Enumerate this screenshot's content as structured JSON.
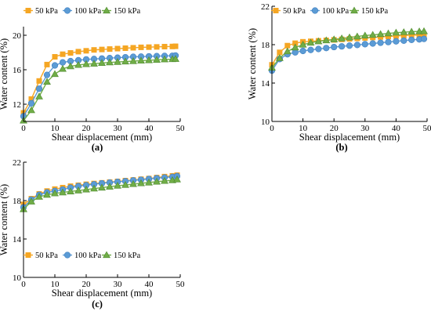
{
  "chart_data": [
    {
      "panel_label": "(a)",
      "type": "line",
      "xlabel": "Shear displacement (mm)",
      "ylabel": "Water content (%)",
      "xlim": [
        0,
        50
      ],
      "ylim": [
        10,
        21
      ],
      "xticks": [
        0,
        10,
        20,
        30,
        40,
        50
      ],
      "yticks": [
        12,
        16,
        20
      ],
      "legend_position": "top-left",
      "series": [
        {
          "name": "50 kPa",
          "color": "#F5A623",
          "marker": "square",
          "x": [
            0,
            2.5,
            5,
            7.5,
            10,
            12.5,
            15,
            17.5,
            20,
            22.5,
            25,
            27.5,
            30,
            32.5,
            35,
            37.5,
            40,
            42.5,
            45,
            47.5,
            48.5
          ],
          "y": [
            11.0,
            12.6,
            14.7,
            16.6,
            17.5,
            17.8,
            17.95,
            18.1,
            18.2,
            18.3,
            18.35,
            18.4,
            18.45,
            18.5,
            18.55,
            18.6,
            18.62,
            18.65,
            18.68,
            18.7,
            18.72
          ]
        },
        {
          "name": "100 kPa",
          "color": "#5B9BD5",
          "marker": "circle",
          "x": [
            0,
            2.5,
            5,
            7.5,
            10,
            12.5,
            15,
            17.5,
            20,
            22.5,
            25,
            27.5,
            30,
            32.5,
            35,
            37.5,
            40,
            42.5,
            45,
            47.5,
            48.5
          ],
          "y": [
            10.6,
            12.1,
            13.8,
            15.4,
            16.5,
            16.85,
            17.0,
            17.1,
            17.2,
            17.25,
            17.3,
            17.35,
            17.4,
            17.45,
            17.5,
            17.52,
            17.55,
            17.58,
            17.6,
            17.62,
            17.65
          ]
        },
        {
          "name": "150 kPa",
          "color": "#70AD47",
          "marker": "triangle",
          "x": [
            0,
            2.5,
            5,
            7.5,
            10,
            12.5,
            15,
            17.5,
            20,
            22.5,
            25,
            27.5,
            30,
            32.5,
            35,
            37.5,
            40,
            42.5,
            45,
            47.5,
            48.5
          ],
          "y": [
            10.1,
            11.3,
            12.9,
            14.6,
            15.5,
            16.1,
            16.4,
            16.55,
            16.65,
            16.7,
            16.78,
            16.85,
            16.9,
            16.95,
            17.0,
            17.05,
            17.1,
            17.15,
            17.2,
            17.22,
            17.25
          ]
        }
      ]
    },
    {
      "panel_label": "(b)",
      "type": "line",
      "xlabel": "Shear displacement (mm)",
      "ylabel": "Water content (%)",
      "xlim": [
        0,
        50
      ],
      "ylim": [
        10,
        22
      ],
      "xticks": [
        0,
        10,
        20,
        30,
        40,
        50
      ],
      "yticks": [
        10,
        14,
        18,
        22
      ],
      "legend_position": "top",
      "series": [
        {
          "name": "50 kPa",
          "color": "#F5A623",
          "marker": "square",
          "x": [
            0,
            2.5,
            5,
            7.5,
            10,
            12.5,
            15,
            17.5,
            20,
            22.5,
            25,
            27.5,
            30,
            32.5,
            35,
            37.5,
            40,
            42.5,
            45,
            47.5,
            49
          ],
          "y": [
            15.9,
            17.2,
            17.9,
            18.15,
            18.3,
            18.35,
            18.4,
            18.45,
            18.5,
            18.55,
            18.6,
            18.65,
            18.7,
            18.75,
            18.8,
            18.85,
            18.9,
            18.95,
            19.0,
            19.0,
            19.05
          ]
        },
        {
          "name": "100 kPa",
          "color": "#5B9BD5",
          "marker": "circle",
          "x": [
            0,
            2.5,
            5,
            7.5,
            10,
            12.5,
            15,
            17.5,
            20,
            22.5,
            25,
            27.5,
            30,
            32.5,
            35,
            37.5,
            40,
            42.5,
            45,
            47.5,
            49
          ],
          "y": [
            15.3,
            16.5,
            17.0,
            17.2,
            17.35,
            17.45,
            17.55,
            17.65,
            17.75,
            17.82,
            17.9,
            17.97,
            18.05,
            18.12,
            18.2,
            18.27,
            18.35,
            18.42,
            18.5,
            18.55,
            18.6
          ]
        },
        {
          "name": "150 kPa",
          "color": "#70AD47",
          "marker": "triangle",
          "x": [
            0,
            2.5,
            5,
            7.5,
            10,
            12.5,
            15,
            17.5,
            20,
            22.5,
            25,
            27.5,
            30,
            32.5,
            35,
            37.5,
            40,
            42.5,
            45,
            47.5,
            49
          ],
          "y": [
            15.6,
            16.6,
            17.3,
            17.7,
            18.0,
            18.2,
            18.35,
            18.45,
            18.55,
            18.65,
            18.75,
            18.85,
            18.95,
            19.02,
            19.1,
            19.17,
            19.25,
            19.3,
            19.35,
            19.38,
            19.4
          ]
        }
      ]
    },
    {
      "panel_label": "(c)",
      "type": "line",
      "xlabel": "Shear displacement (mm)",
      "ylabel": "Water content (%)",
      "xlim": [
        0,
        50
      ],
      "ylim": [
        10,
        22
      ],
      "xticks": [
        0,
        10,
        20,
        30,
        40,
        50
      ],
      "yticks": [
        10,
        14,
        18,
        22
      ],
      "legend_position": "bottom",
      "series": [
        {
          "name": "50 kPa",
          "color": "#F5A623",
          "marker": "square",
          "x": [
            0,
            2.5,
            5,
            7.5,
            10,
            12.5,
            15,
            17.5,
            20,
            22.5,
            25,
            27.5,
            30,
            32.5,
            35,
            37.5,
            40,
            42.5,
            45,
            47.5,
            49
          ],
          "y": [
            17.6,
            18.2,
            18.7,
            19.0,
            19.2,
            19.35,
            19.5,
            19.6,
            19.7,
            19.78,
            19.85,
            19.93,
            20.0,
            20.08,
            20.15,
            20.23,
            20.3,
            20.4,
            20.5,
            20.58,
            20.65
          ]
        },
        {
          "name": "100 kPa",
          "color": "#5B9BD5",
          "marker": "circle",
          "x": [
            0,
            2.5,
            5,
            7.5,
            10,
            12.5,
            15,
            17.5,
            20,
            22.5,
            25,
            27.5,
            30,
            32.5,
            35,
            37.5,
            40,
            42.5,
            45,
            47.5,
            49
          ],
          "y": [
            17.3,
            18.1,
            18.6,
            18.85,
            19.0,
            19.15,
            19.35,
            19.5,
            19.6,
            19.7,
            19.8,
            19.88,
            19.95,
            20.02,
            20.1,
            20.17,
            20.25,
            20.33,
            20.4,
            20.47,
            20.55
          ]
        },
        {
          "name": "150 kPa",
          "color": "#70AD47",
          "marker": "triangle",
          "x": [
            0,
            2.5,
            5,
            7.5,
            10,
            12.5,
            15,
            17.5,
            20,
            22.5,
            25,
            27.5,
            30,
            32.5,
            35,
            37.5,
            40,
            42.5,
            45,
            47.5,
            49
          ],
          "y": [
            17.1,
            17.9,
            18.4,
            18.6,
            18.75,
            18.85,
            18.95,
            19.05,
            19.15,
            19.25,
            19.35,
            19.45,
            19.55,
            19.63,
            19.72,
            19.8,
            19.88,
            19.97,
            20.05,
            20.12,
            20.2
          ]
        }
      ]
    }
  ]
}
